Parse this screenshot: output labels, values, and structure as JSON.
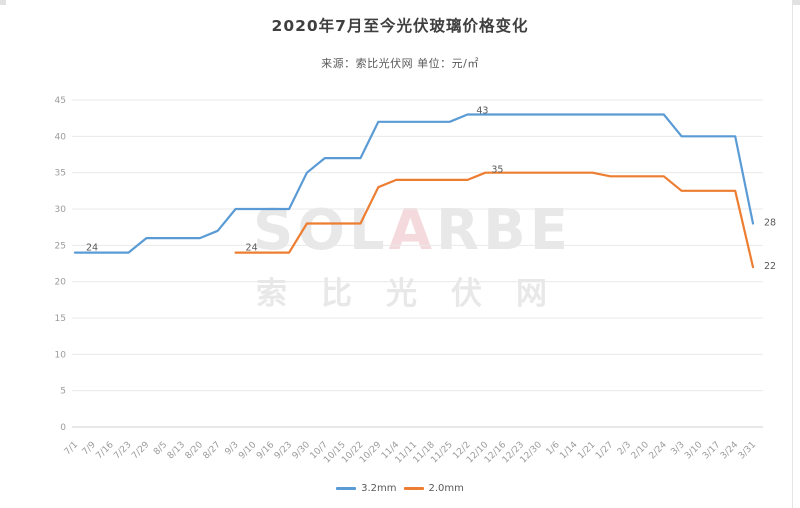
{
  "title": "2020年7月至今光伏玻璃价格变化",
  "subtitle": "来源：索比光伏网 单位：元/㎡",
  "watermark": {
    "logo_pre": "SOL",
    "logo_accent": "A",
    "logo_post": "RBE",
    "cn": "索比光伏网"
  },
  "legend": [
    {
      "label": "3.2mm",
      "color": "#5B9BD5"
    },
    {
      "label": "2.0mm",
      "color": "#ED7D31"
    }
  ],
  "colors": {
    "blue": "#5B9BD5",
    "orange": "#ED7D31",
    "grid": "#e9e9e9",
    "axis_line": "#cfcfcf",
    "tick_text": "#9b9b9b",
    "data_label": "#595959"
  },
  "chart_data": {
    "type": "line",
    "title": "2020年7月至今光伏玻璃价格变化",
    "source": "来源：索比光伏网",
    "unit": "元/㎡",
    "grid": true,
    "legend_position": "bottom",
    "ylim": [
      0,
      45
    ],
    "ytick_step": 5,
    "x": [
      "7/1",
      "7/9",
      "7/16",
      "7/23",
      "7/29",
      "8/5",
      "8/13",
      "8/20",
      "8/27",
      "9/3",
      "9/10",
      "9/16",
      "9/23",
      "9/30",
      "10/7",
      "10/15",
      "10/22",
      "10/29",
      "11/4",
      "11/11",
      "11/18",
      "11/25",
      "12/2",
      "12/10",
      "12/16",
      "12/23",
      "12/30",
      "1/6",
      "1/14",
      "1/21",
      "1/27",
      "2/3",
      "2/10",
      "2/24",
      "3/3",
      "3/10",
      "3/17",
      "3/24",
      "3/31"
    ],
    "series": [
      {
        "name": "3.2mm",
        "color": "#5B9BD5",
        "start_index": 0,
        "values": [
          24,
          24,
          24,
          24,
          26,
          26,
          26,
          26,
          27,
          30,
          30,
          30,
          30,
          35,
          37,
          37,
          37,
          42,
          42,
          42,
          42,
          42,
          43,
          43,
          43,
          43,
          43,
          43,
          43,
          43,
          43,
          43,
          43,
          43,
          40,
          40,
          40,
          40,
          28
        ],
        "point_labels": [
          {
            "index": 0,
            "text": "24",
            "dx": 17,
            "dy": -5
          },
          {
            "index": 23,
            "text": "43",
            "dx": -3,
            "dy": -4
          },
          {
            "index": 38,
            "text": "28",
            "dx": 17,
            "dy": -1
          }
        ]
      },
      {
        "name": "2.0mm",
        "color": "#ED7D31",
        "start_index": 9,
        "values": [
          24,
          24,
          24,
          24,
          28,
          28,
          28,
          28,
          33,
          34,
          34,
          34,
          34,
          34,
          35,
          35,
          35,
          35,
          35,
          35,
          35,
          34.5,
          34.5,
          34.5,
          34.5,
          32.5,
          32.5,
          32.5,
          32.5,
          22
        ],
        "point_labels": [
          {
            "index": 0,
            "text": "24",
            "dx": 16,
            "dy": -5
          },
          {
            "index": 14,
            "text": "35",
            "dx": 12,
            "dy": -3
          },
          {
            "index": 29,
            "text": "22",
            "dx": 17,
            "dy": -1
          }
        ]
      }
    ]
  }
}
